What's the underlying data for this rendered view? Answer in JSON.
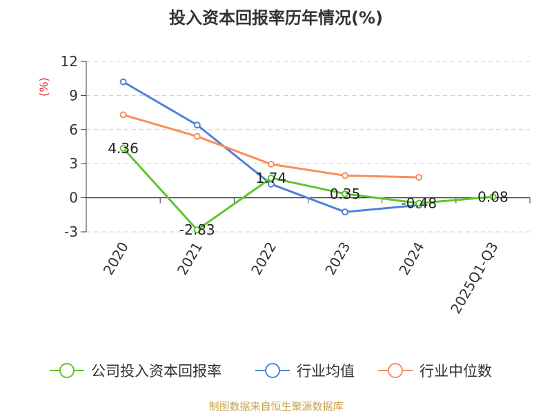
{
  "chart_data": {
    "type": "line",
    "title": "投入资本回报率历年情况(%)",
    "ylabel": "(%)",
    "xlabel": "",
    "categories": [
      "2020",
      "2021",
      "2022",
      "2023",
      "2024",
      "2025Q1-Q3"
    ],
    "ylim": [
      -3,
      12
    ],
    "yticks": [
      -3,
      0,
      3,
      6,
      9,
      12
    ],
    "grid": true,
    "legend_position": "bottom",
    "series": [
      {
        "name": "公司投入资本回报率",
        "color": "#5cc62a",
        "values": [
          4.36,
          -2.83,
          1.74,
          0.35,
          -0.48,
          0.08
        ],
        "labels": [
          "4.36",
          "-2.83",
          "1.74",
          "0.35",
          "-0.48",
          "0.08"
        ]
      },
      {
        "name": "行业均值",
        "color": "#4d82d9",
        "values": [
          10.2,
          6.4,
          1.2,
          -1.25,
          -0.65,
          null
        ]
      },
      {
        "name": "行业中位数",
        "color": "#f98d59",
        "values": [
          7.3,
          5.4,
          2.95,
          1.95,
          1.8,
          null
        ]
      }
    ],
    "source": "制图数据来自恒生聚源数据库"
  }
}
